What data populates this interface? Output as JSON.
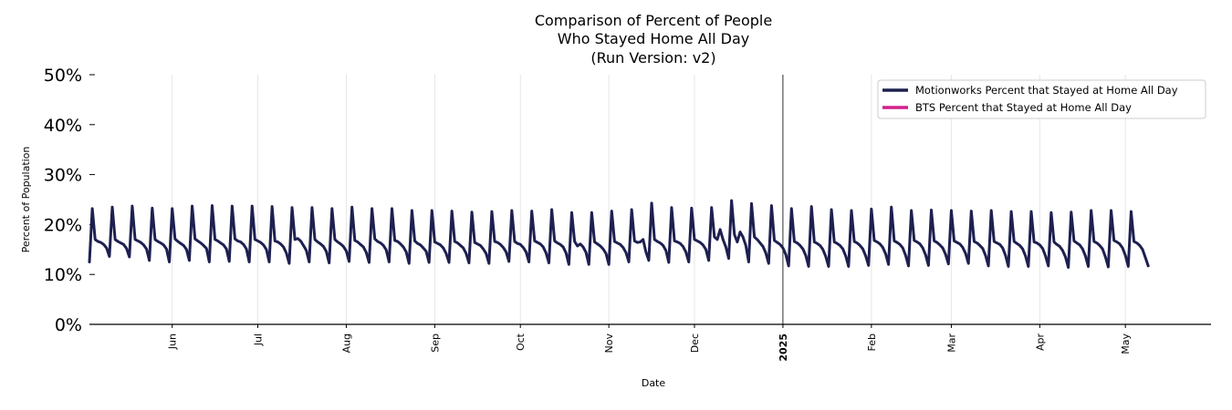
{
  "chart_data": {
    "type": "line",
    "title": [
      "Comparison of Percent of People",
      "Who Stayed Home All Day",
      "(Run Version: v2)"
    ],
    "xlabel": "Date",
    "ylabel": "Percent of Population",
    "ylim": [
      0,
      0.5
    ],
    "y_ticks": [
      "0%",
      "10%",
      "20%",
      "30%",
      "40%",
      "50%"
    ],
    "x_range": [
      "2024-05-03",
      "2025-05-31"
    ],
    "x_ticks": [
      {
        "date": "2024-06-01",
        "label": "Jun",
        "bold": false
      },
      {
        "date": "2024-07-01",
        "label": "Jul",
        "bold": false
      },
      {
        "date": "2024-08-01",
        "label": "Aug",
        "bold": false
      },
      {
        "date": "2024-09-01",
        "label": "Sep",
        "bold": false
      },
      {
        "date": "2024-10-01",
        "label": "Oct",
        "bold": false
      },
      {
        "date": "2024-11-01",
        "label": "Nov",
        "bold": false
      },
      {
        "date": "2024-12-01",
        "label": "Dec",
        "bold": false
      },
      {
        "date": "2025-01-01",
        "label": "2025",
        "bold": true
      },
      {
        "date": "2025-02-01",
        "label": "Feb",
        "bold": false
      },
      {
        "date": "2025-03-01",
        "label": "Mar",
        "bold": false
      },
      {
        "date": "2025-04-01",
        "label": "Apr",
        "bold": false
      },
      {
        "date": "2025-05-01",
        "label": "May",
        "bold": false
      }
    ],
    "vline_date": "2025-01-01",
    "grid": "vertical",
    "legend_placement": "top-right",
    "series": [
      {
        "name": "Motionworks Percent that Stayed at Home All Day",
        "color": "#1e2050",
        "start_date": "2024-05-03",
        "values": [
          0.125,
          0.232,
          0.17,
          0.166,
          0.164,
          0.16,
          0.153,
          0.136,
          0.235,
          0.17,
          0.166,
          0.163,
          0.16,
          0.152,
          0.135,
          0.237,
          0.17,
          0.167,
          0.164,
          0.159,
          0.151,
          0.128,
          0.233,
          0.17,
          0.166,
          0.163,
          0.159,
          0.151,
          0.125,
          0.232,
          0.171,
          0.166,
          0.162,
          0.158,
          0.15,
          0.128,
          0.237,
          0.171,
          0.167,
          0.163,
          0.158,
          0.152,
          0.125,
          0.238,
          0.17,
          0.167,
          0.163,
          0.159,
          0.151,
          0.126,
          0.237,
          0.171,
          0.167,
          0.165,
          0.16,
          0.151,
          0.125,
          0.237,
          0.17,
          0.167,
          0.164,
          0.159,
          0.15,
          0.125,
          0.236,
          0.167,
          0.165,
          0.161,
          0.155,
          0.143,
          0.122,
          0.234,
          0.17,
          0.172,
          0.167,
          0.158,
          0.148,
          0.125,
          0.234,
          0.17,
          0.165,
          0.161,
          0.156,
          0.146,
          0.123,
          0.232,
          0.17,
          0.165,
          0.161,
          0.156,
          0.147,
          0.126,
          0.235,
          0.168,
          0.165,
          0.16,
          0.155,
          0.144,
          0.124,
          0.232,
          0.171,
          0.166,
          0.163,
          0.158,
          0.149,
          0.125,
          0.232,
          0.168,
          0.166,
          0.161,
          0.155,
          0.145,
          0.122,
          0.228,
          0.167,
          0.162,
          0.159,
          0.153,
          0.146,
          0.124,
          0.228,
          0.165,
          0.162,
          0.159,
          0.153,
          0.142,
          0.124,
          0.227,
          0.166,
          0.163,
          0.158,
          0.153,
          0.142,
          0.123,
          0.225,
          0.164,
          0.161,
          0.158,
          0.151,
          0.142,
          0.122,
          0.226,
          0.166,
          0.164,
          0.16,
          0.154,
          0.145,
          0.126,
          0.228,
          0.166,
          0.162,
          0.16,
          0.154,
          0.145,
          0.125,
          0.227,
          0.167,
          0.164,
          0.161,
          0.155,
          0.143,
          0.123,
          0.23,
          0.167,
          0.163,
          0.16,
          0.155,
          0.143,
          0.12,
          0.224,
          0.166,
          0.157,
          0.161,
          0.155,
          0.144,
          0.12,
          0.224,
          0.165,
          0.161,
          0.157,
          0.151,
          0.142,
          0.12,
          0.227,
          0.166,
          0.163,
          0.16,
          0.154,
          0.144,
          0.125,
          0.23,
          0.167,
          0.164,
          0.165,
          0.17,
          0.145,
          0.128,
          0.243,
          0.17,
          0.166,
          0.163,
          0.158,
          0.148,
          0.124,
          0.234,
          0.167,
          0.165,
          0.162,
          0.156,
          0.145,
          0.125,
          0.233,
          0.17,
          0.167,
          0.164,
          0.159,
          0.15,
          0.128,
          0.234,
          0.175,
          0.17,
          0.19,
          0.17,
          0.155,
          0.132,
          0.248,
          0.18,
          0.165,
          0.185,
          0.175,
          0.158,
          0.125,
          0.242,
          0.175,
          0.17,
          0.163,
          0.156,
          0.143,
          0.122,
          0.238,
          0.168,
          0.164,
          0.16,
          0.153,
          0.14,
          0.117,
          0.232,
          0.166,
          0.163,
          0.158,
          0.151,
          0.138,
          0.116,
          0.236,
          0.165,
          0.162,
          0.158,
          0.15,
          0.136,
          0.116,
          0.23,
          0.165,
          0.162,
          0.158,
          0.151,
          0.137,
          0.116,
          0.228,
          0.166,
          0.163,
          0.158,
          0.151,
          0.137,
          0.118,
          0.231,
          0.168,
          0.165,
          0.161,
          0.154,
          0.141,
          0.12,
          0.235,
          0.167,
          0.164,
          0.16,
          0.153,
          0.138,
          0.117,
          0.228,
          0.168,
          0.165,
          0.161,
          0.153,
          0.139,
          0.118,
          0.229,
          0.167,
          0.164,
          0.159,
          0.153,
          0.14,
          0.121,
          0.228,
          0.167,
          0.164,
          0.161,
          0.154,
          0.142,
          0.122,
          0.227,
          0.166,
          0.163,
          0.158,
          0.152,
          0.138,
          0.117,
          0.228,
          0.166,
          0.163,
          0.16,
          0.153,
          0.138,
          0.116,
          0.226,
          0.166,
          0.162,
          0.158,
          0.151,
          0.137,
          0.116,
          0.226,
          0.165,
          0.163,
          0.159,
          0.152,
          0.137,
          0.117,
          0.224,
          0.165,
          0.16,
          0.156,
          0.148,
          0.135,
          0.114,
          0.225,
          0.167,
          0.163,
          0.159,
          0.151,
          0.137,
          0.116,
          0.228,
          0.166,
          0.163,
          0.158,
          0.151,
          0.135,
          0.115,
          0.228,
          0.168,
          0.165,
          0.161,
          0.153,
          0.138,
          0.116,
          0.226,
          0.166,
          0.163,
          0.158,
          0.15,
          0.134,
          0.117
        ]
      },
      {
        "name": "BTS Percent that Stayed at Home All Day",
        "color": "#d21f8c",
        "values": []
      }
    ]
  }
}
